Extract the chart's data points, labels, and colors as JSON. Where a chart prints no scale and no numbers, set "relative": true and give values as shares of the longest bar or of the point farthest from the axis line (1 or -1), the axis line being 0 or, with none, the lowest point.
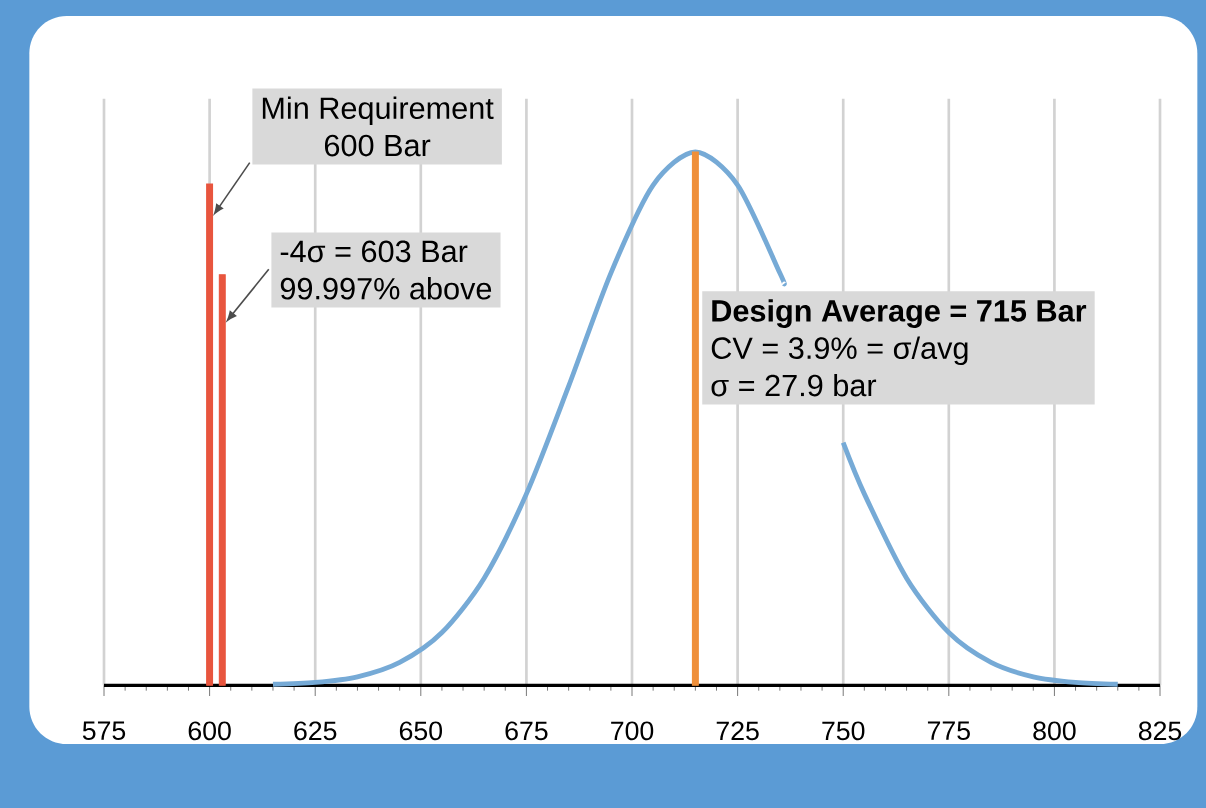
{
  "chart_data": {
    "type": "line",
    "relative": true,
    "grid": true,
    "xlim": [
      575,
      825
    ],
    "xticks": [
      575,
      600,
      625,
      650,
      675,
      700,
      725,
      750,
      775,
      800,
      825
    ],
    "series": [
      {
        "color": "#76aad6",
        "x": [
          615,
          625,
          635,
          645,
          655,
          665,
          675,
          685,
          695,
          705,
          715,
          725,
          735,
          736,
          745,
          750,
          755,
          765,
          775,
          785,
          795,
          805,
          815
        ],
        "values": [
          0.002,
          0.0055,
          0.016,
          0.043,
          0.099,
          0.201,
          0.359,
          0.561,
          0.773,
          0.938,
          1.0,
          0.938,
          0.773,
          0.753,
          null,
          0.455,
          0.359,
          0.201,
          0.099,
          0.043,
          0.016,
          0.0055,
          0.002
        ]
      },
      {
        "type": "bar",
        "x": [
          600,
          603,
          715
        ],
        "values": [
          0.94,
          0.77,
          1.0
        ],
        "colors": [
          "#e8553e",
          "#e8553e",
          "#ef8f3a"
        ]
      }
    ],
    "annotations": [
      "Min Requirement",
      "600 Bar",
      "-4σ = 603 Bar",
      "99.997% above",
      "**Design Average = 715 Bar**",
      "CV = 3.9% = σ/avg",
      "σ = 27.9 bar"
    ]
  }
}
